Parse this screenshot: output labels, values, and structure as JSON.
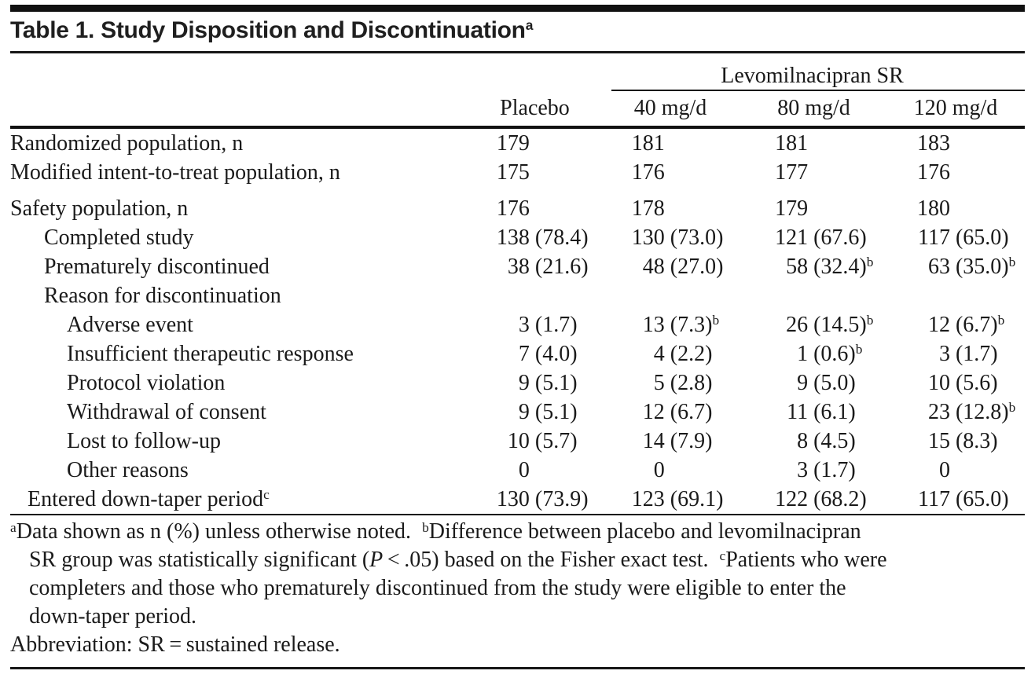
{
  "colors": {
    "background": "#ffffff",
    "text": "#1a1a1a",
    "rule": "#111111"
  },
  "title": {
    "text": "Table 1. Study Disposition and Discontinuation",
    "superscript": "a"
  },
  "table": {
    "group_header": "Levomilnacipran SR",
    "columns": [
      {
        "label": "Placebo"
      },
      {
        "label": "40 mg/d"
      },
      {
        "label": "80 mg/d"
      },
      {
        "label": "120 mg/d"
      }
    ],
    "rows": [
      {
        "label": "Randomized population, n",
        "indent": 0,
        "gap_before": false,
        "values": [
          {
            "n": "179"
          },
          {
            "n": "181"
          },
          {
            "n": "181"
          },
          {
            "n": "183"
          }
        ]
      },
      {
        "label": "Modified intent-to-treat population, n",
        "indent": 0,
        "gap_before": false,
        "values": [
          {
            "n": "175"
          },
          {
            "n": "176"
          },
          {
            "n": "177"
          },
          {
            "n": "176"
          }
        ]
      },
      {
        "label": "Safety population, n",
        "indent": 0,
        "gap_before": true,
        "values": [
          {
            "n": "176"
          },
          {
            "n": "178"
          },
          {
            "n": "179"
          },
          {
            "n": "180"
          }
        ]
      },
      {
        "label": "Completed study",
        "indent": 2,
        "gap_before": false,
        "values": [
          {
            "n": "138",
            "p": "(78.4)"
          },
          {
            "n": "130",
            "p": "(73.0)"
          },
          {
            "n": "121",
            "p": "(67.6)"
          },
          {
            "n": "117",
            "p": "(65.0)"
          }
        ]
      },
      {
        "label": "Prematurely discontinued",
        "indent": 2,
        "gap_before": false,
        "values": [
          {
            "n": "38",
            "p": "(21.6)"
          },
          {
            "n": "48",
            "p": "(27.0)"
          },
          {
            "n": "58",
            "p": "(32.4)",
            "sup": "b"
          },
          {
            "n": "63",
            "p": "(35.0)",
            "sup": "b"
          }
        ]
      },
      {
        "label": "Reason for discontinuation",
        "indent": 2,
        "gap_before": false,
        "values": []
      },
      {
        "label": "Adverse event",
        "indent": 3,
        "gap_before": false,
        "values": [
          {
            "n": "3",
            "p": "(1.7)"
          },
          {
            "n": "13",
            "p": "(7.3)",
            "sup": "b"
          },
          {
            "n": "26",
            "p": "(14.5)",
            "sup": "b"
          },
          {
            "n": "12",
            "p": "(6.7)",
            "sup": "b"
          }
        ]
      },
      {
        "label": "Insufficient therapeutic response",
        "indent": 3,
        "gap_before": false,
        "values": [
          {
            "n": "7",
            "p": "(4.0)"
          },
          {
            "n": "4",
            "p": "(2.2)"
          },
          {
            "n": "1",
            "p": "(0.6)",
            "sup": "b"
          },
          {
            "n": "3",
            "p": "(1.7)"
          }
        ]
      },
      {
        "label": "Protocol violation",
        "indent": 3,
        "gap_before": false,
        "values": [
          {
            "n": "9",
            "p": "(5.1)"
          },
          {
            "n": "5",
            "p": "(2.8)"
          },
          {
            "n": "9",
            "p": "(5.0)"
          },
          {
            "n": "10",
            "p": "(5.6)"
          }
        ]
      },
      {
        "label": "Withdrawal of consent",
        "indent": 3,
        "gap_before": false,
        "values": [
          {
            "n": "9",
            "p": "(5.1)"
          },
          {
            "n": "12",
            "p": "(6.7)"
          },
          {
            "n": "11",
            "p": "(6.1)"
          },
          {
            "n": "23",
            "p": "(12.8)",
            "sup": "b"
          }
        ]
      },
      {
        "label": "Lost to follow-up",
        "indent": 3,
        "gap_before": false,
        "values": [
          {
            "n": "10",
            "p": "(5.7)"
          },
          {
            "n": "14",
            "p": "(7.9)"
          },
          {
            "n": "8",
            "p": "(4.5)"
          },
          {
            "n": "15",
            "p": "(8.3)"
          }
        ]
      },
      {
        "label": "Other reasons",
        "indent": 3,
        "gap_before": false,
        "values": [
          {
            "n": "0"
          },
          {
            "n": "0"
          },
          {
            "n": "3",
            "p": "(1.7)"
          },
          {
            "n": "0"
          }
        ]
      },
      {
        "label": "Entered down-taper period",
        "label_sup": "c",
        "indent": 1,
        "gap_before": false,
        "values": [
          {
            "n": "130",
            "p": "(73.9)"
          },
          {
            "n": "123",
            "p": "(69.1)"
          },
          {
            "n": "122",
            "p": "(68.2)"
          },
          {
            "n": "117",
            "p": "(65.0)"
          }
        ]
      }
    ]
  },
  "footnote_lines": [
    {
      "indent": false,
      "runs": [
        {
          "sup": "a"
        },
        {
          "t": "Data shown as n (%) unless otherwise noted.  "
        },
        {
          "sup": "b"
        },
        {
          "t": "Difference between placebo and levomilnacipran"
        }
      ]
    },
    {
      "indent": true,
      "runs": [
        {
          "t": "SR group was statistically significant ("
        },
        {
          "i": "P"
        },
        {
          "t": " < .05) based on the Fisher exact test.  "
        },
        {
          "sup": "c"
        },
        {
          "t": "Patients who were"
        }
      ]
    },
    {
      "indent": true,
      "runs": [
        {
          "t": "completers and those who prematurely discontinued from the study were eligible to enter the"
        }
      ]
    },
    {
      "indent": true,
      "runs": [
        {
          "t": "down-taper period."
        }
      ]
    },
    {
      "indent": false,
      "runs": [
        {
          "t": "Abbreviation: SR = sustained release."
        }
      ]
    }
  ]
}
